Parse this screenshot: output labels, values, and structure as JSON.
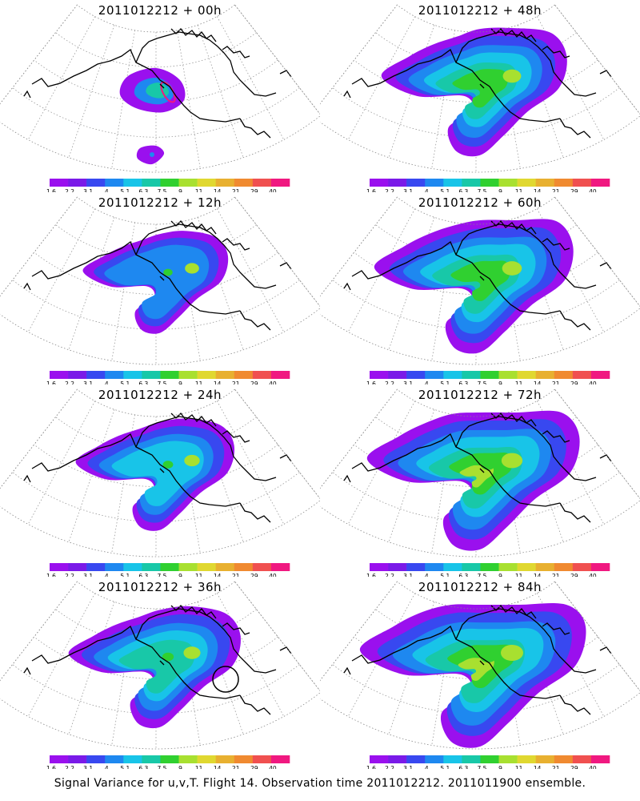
{
  "chart_data": {
    "type": "heatmap",
    "colorbar": {
      "levels": [
        "1.6",
        "2.2",
        "3.1",
        "4",
        "5.1",
        "6.3",
        "7.5",
        "9",
        "11",
        "14",
        "21",
        "29",
        "40"
      ],
      "colors": [
        "#9a10ee",
        "#7a1ae8",
        "#3848f0",
        "#1e88f0",
        "#18c4e8",
        "#18c8a8",
        "#30d030",
        "#a8e030",
        "#e0d830",
        "#e8b030",
        "#f08a30",
        "#f05050",
        "#f01880"
      ]
    },
    "panels": [
      {
        "title": "2011012212 + 00h",
        "lead_hours": 0
      },
      {
        "title": "2011012212 + 48h",
        "lead_hours": 48
      },
      {
        "title": "2011012212 + 12h",
        "lead_hours": 12
      },
      {
        "title": "2011012212 + 60h",
        "lead_hours": 60
      },
      {
        "title": "2011012212 + 24h",
        "lead_hours": 24
      },
      {
        "title": "2011012212 + 72h",
        "lead_hours": 72
      },
      {
        "title": "2011012212 + 36h",
        "lead_hours": 36
      },
      {
        "title": "2011012212 + 84h",
        "lead_hours": 84
      }
    ],
    "footer": "Signal Variance for u,v,T. Flight 14. Observation time 2011012212. 2011011900 ensemble."
  }
}
